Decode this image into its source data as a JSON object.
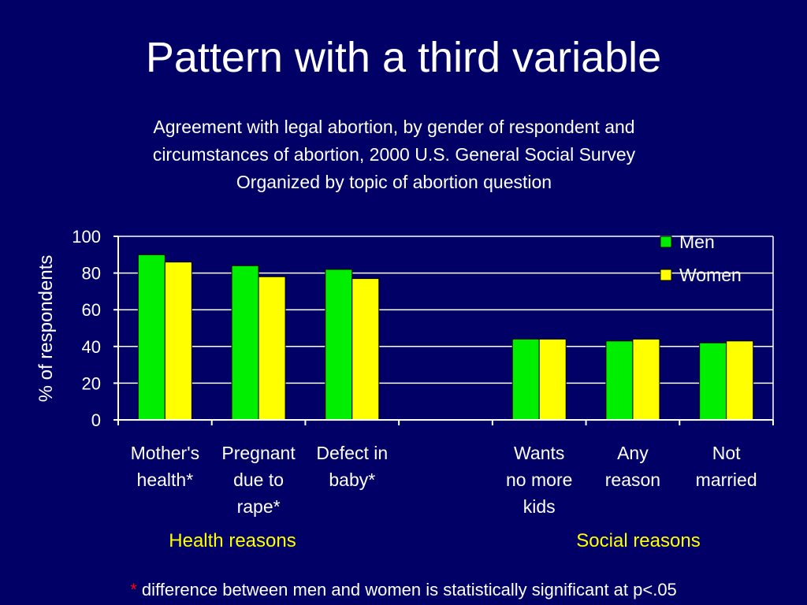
{
  "slide": {
    "title": "Pattern with a third variable",
    "subtitle_lines": [
      "Agreement with legal abortion, by gender of respondent and",
      "circumstances of abortion, 2000 U.S. General Social Survey",
      "Organized by topic of abortion question"
    ],
    "group_labels": [
      "Health reasons",
      "Social reasons"
    ],
    "footnote_marker": "*",
    "footnote_text": " difference between men and women is statistically significant at p<.05"
  },
  "colors": {
    "background": "#000066",
    "men": "#00ee00",
    "women": "#ffff00",
    "text": "#ffffff",
    "group_label": "#ffff00",
    "marker": "#ff0000"
  },
  "chart_data": {
    "type": "bar",
    "ylabel": "% of respondents",
    "ylim": [
      0,
      100
    ],
    "yticks": [
      0,
      20,
      40,
      60,
      80,
      100
    ],
    "grid": true,
    "legend": "top-right",
    "categories": [
      [
        "Mother's",
        "health*"
      ],
      [
        "Pregnant",
        "due to",
        "rape*"
      ],
      [
        "Defect in",
        "baby*"
      ],
      [],
      [
        "Wants",
        "no more",
        "kids"
      ],
      [
        "Any",
        "reason"
      ],
      [
        "Not",
        "married"
      ]
    ],
    "series": [
      {
        "name": "Men",
        "values": [
          90,
          84,
          82,
          null,
          44,
          43,
          42
        ]
      },
      {
        "name": "Women",
        "values": [
          86,
          78,
          77,
          null,
          44,
          44,
          43
        ]
      }
    ]
  }
}
